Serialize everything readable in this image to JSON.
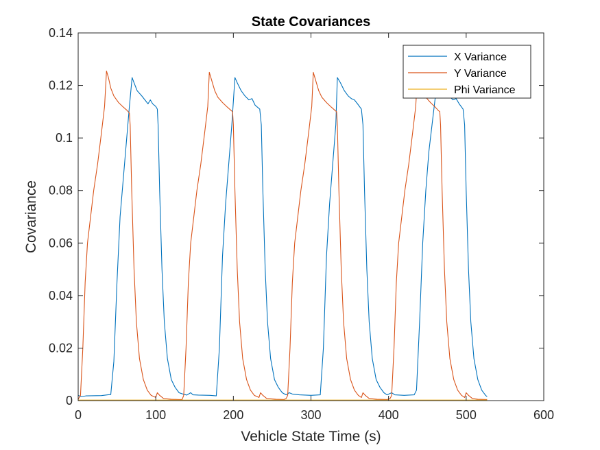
{
  "chart_data": {
    "type": "line",
    "title": "State Covariances",
    "xlabel": "Vehicle State Time (s)",
    "ylabel": "Covariance",
    "xlim": [
      0,
      600
    ],
    "ylim": [
      0,
      0.14
    ],
    "xticks": [
      0,
      100,
      200,
      300,
      400,
      500,
      600
    ],
    "yticks": [
      0,
      0.02,
      0.04,
      0.06,
      0.08,
      0.1,
      0.12,
      0.14
    ],
    "xtick_labels": [
      "0",
      "100",
      "200",
      "300",
      "400",
      "500",
      "600"
    ],
    "ytick_labels": [
      "0",
      "0.02",
      "0.04",
      "0.06",
      "0.08",
      "0.1",
      "0.12",
      "0.14"
    ],
    "grid": false,
    "legend_position": "top-right",
    "series": [
      {
        "name": "X Variance",
        "color": "#0072BD",
        "points": [
          [
            0,
            0.002
          ],
          [
            4,
            0.0015
          ],
          [
            10,
            0.0018
          ],
          [
            30,
            0.0019
          ],
          [
            38,
            0.0022
          ],
          [
            42,
            0.0023
          ],
          [
            46,
            0.015
          ],
          [
            50,
            0.045
          ],
          [
            54,
            0.07
          ],
          [
            58,
            0.084
          ],
          [
            62,
            0.098
          ],
          [
            66,
            0.112
          ],
          [
            69.5,
            0.123
          ],
          [
            72,
            0.121
          ],
          [
            76,
            0.118
          ],
          [
            82,
            0.116
          ],
          [
            86,
            0.1145
          ],
          [
            90,
            0.113
          ],
          [
            93,
            0.1145
          ],
          [
            96,
            0.113
          ],
          [
            100,
            0.112
          ],
          [
            102,
            0.111
          ],
          [
            103,
            0.105
          ],
          [
            105,
            0.08
          ],
          [
            108,
            0.05
          ],
          [
            111,
            0.03
          ],
          [
            115,
            0.016
          ],
          [
            120,
            0.008
          ],
          [
            125,
            0.005
          ],
          [
            130,
            0.003
          ],
          [
            135,
            0.0025
          ],
          [
            140,
            0.0021
          ],
          [
            145,
            0.003
          ],
          [
            148,
            0.0022
          ],
          [
            155,
            0.0021
          ],
          [
            170,
            0.002
          ],
          [
            178,
            0.0018
          ],
          [
            182,
            0.02
          ],
          [
            186,
            0.055
          ],
          [
            190,
            0.075
          ],
          [
            194,
            0.09
          ],
          [
            198,
            0.105
          ],
          [
            202,
            0.123
          ],
          [
            205,
            0.121
          ],
          [
            210,
            0.118
          ],
          [
            215,
            0.116
          ],
          [
            220,
            0.1145
          ],
          [
            224,
            0.115
          ],
          [
            228,
            0.1125
          ],
          [
            234,
            0.111
          ],
          [
            236,
            0.105
          ],
          [
            238,
            0.08
          ],
          [
            241,
            0.05
          ],
          [
            244,
            0.03
          ],
          [
            248,
            0.016
          ],
          [
            253,
            0.008
          ],
          [
            258,
            0.005
          ],
          [
            263,
            0.003
          ],
          [
            268,
            0.0022
          ],
          [
            272,
            0.003
          ],
          [
            276,
            0.0025
          ],
          [
            285,
            0.0022
          ],
          [
            300,
            0.002
          ],
          [
            312,
            0.0022
          ],
          [
            316,
            0.02
          ],
          [
            320,
            0.055
          ],
          [
            324,
            0.075
          ],
          [
            328,
            0.09
          ],
          [
            332,
            0.105
          ],
          [
            334,
            0.123
          ],
          [
            338,
            0.121
          ],
          [
            343,
            0.118
          ],
          [
            348,
            0.116
          ],
          [
            352,
            0.115
          ],
          [
            356,
            0.1145
          ],
          [
            360,
            0.113
          ],
          [
            365,
            0.111
          ],
          [
            367,
            0.105
          ],
          [
            369,
            0.08
          ],
          [
            372,
            0.05
          ],
          [
            375,
            0.03
          ],
          [
            379,
            0.016
          ],
          [
            384,
            0.008
          ],
          [
            389,
            0.005
          ],
          [
            394,
            0.003
          ],
          [
            398,
            0.0022
          ],
          [
            404,
            0.003
          ],
          [
            408,
            0.0022
          ],
          [
            420,
            0.002
          ],
          [
            433,
            0.0022
          ],
          [
            436,
            0.004
          ],
          [
            440,
            0.03
          ],
          [
            444,
            0.06
          ],
          [
            448,
            0.08
          ],
          [
            452,
            0.095
          ],
          [
            456,
            0.105
          ],
          [
            460,
            0.115
          ],
          [
            464,
            0.123
          ],
          [
            468,
            0.121
          ],
          [
            472,
            0.118
          ],
          [
            478,
            0.116
          ],
          [
            483,
            0.1145
          ],
          [
            487,
            0.115
          ],
          [
            491,
            0.113
          ],
          [
            496,
            0.111
          ],
          [
            498,
            0.105
          ],
          [
            500,
            0.08
          ],
          [
            503,
            0.05
          ],
          [
            506,
            0.03
          ],
          [
            510,
            0.016
          ],
          [
            515,
            0.008
          ],
          [
            520,
            0.004
          ],
          [
            525,
            0.002
          ],
          [
            527,
            0.0015
          ]
        ]
      },
      {
        "name": "Y Variance",
        "color": "#D95319",
        "points": [
          [
            0,
            0.0005
          ],
          [
            3,
            0.002
          ],
          [
            6,
            0.02
          ],
          [
            9,
            0.045
          ],
          [
            12,
            0.06
          ],
          [
            16,
            0.07
          ],
          [
            20,
            0.08
          ],
          [
            25,
            0.09
          ],
          [
            30,
            0.102
          ],
          [
            34,
            0.112
          ],
          [
            36.5,
            0.1255
          ],
          [
            39,
            0.123
          ],
          [
            42,
            0.119
          ],
          [
            46,
            0.116
          ],
          [
            52,
            0.1135
          ],
          [
            58,
            0.1118
          ],
          [
            63,
            0.1105
          ],
          [
            66,
            0.1095
          ],
          [
            67,
            0.105
          ],
          [
            69,
            0.08
          ],
          [
            72,
            0.05
          ],
          [
            75,
            0.03
          ],
          [
            79,
            0.016
          ],
          [
            84,
            0.008
          ],
          [
            89,
            0.004
          ],
          [
            94,
            0.002
          ],
          [
            100,
            0.0012
          ],
          [
            102,
            0.003
          ],
          [
            105,
            0.002
          ],
          [
            110,
            0.0008
          ],
          [
            120,
            0.0005
          ],
          [
            130,
            0.0004
          ],
          [
            134,
            0.0004
          ],
          [
            136,
            0.002
          ],
          [
            139,
            0.02
          ],
          [
            142,
            0.045
          ],
          [
            145,
            0.06
          ],
          [
            149,
            0.07
          ],
          [
            153,
            0.08
          ],
          [
            158,
            0.09
          ],
          [
            163,
            0.102
          ],
          [
            167,
            0.112
          ],
          [
            169,
            0.125
          ],
          [
            172,
            0.122
          ],
          [
            176,
            0.118
          ],
          [
            180,
            0.1155
          ],
          [
            186,
            0.1135
          ],
          [
            192,
            0.1118
          ],
          [
            197,
            0.1105
          ],
          [
            199,
            0.11
          ],
          [
            200,
            0.105
          ],
          [
            202,
            0.08
          ],
          [
            205,
            0.05
          ],
          [
            208,
            0.03
          ],
          [
            212,
            0.016
          ],
          [
            217,
            0.008
          ],
          [
            222,
            0.004
          ],
          [
            227,
            0.002
          ],
          [
            233,
            0.0012
          ],
          [
            235,
            0.003
          ],
          [
            238,
            0.002
          ],
          [
            243,
            0.0008
          ],
          [
            255,
            0.0005
          ],
          [
            265,
            0.0004
          ],
          [
            268,
            0.0008
          ],
          [
            270,
            0.002
          ],
          [
            273,
            0.02
          ],
          [
            276,
            0.045
          ],
          [
            279,
            0.06
          ],
          [
            283,
            0.07
          ],
          [
            287,
            0.08
          ],
          [
            292,
            0.09
          ],
          [
            297,
            0.102
          ],
          [
            301,
            0.112
          ],
          [
            303,
            0.125
          ],
          [
            306,
            0.122
          ],
          [
            310,
            0.118
          ],
          [
            314,
            0.1155
          ],
          [
            320,
            0.1135
          ],
          [
            326,
            0.1118
          ],
          [
            331,
            0.1105
          ],
          [
            333,
            0.11
          ],
          [
            334,
            0.105
          ],
          [
            336,
            0.08
          ],
          [
            339,
            0.05
          ],
          [
            342,
            0.03
          ],
          [
            346,
            0.016
          ],
          [
            351,
            0.008
          ],
          [
            356,
            0.004
          ],
          [
            361,
            0.002
          ],
          [
            365,
            0.0012
          ],
          [
            367,
            0.003
          ],
          [
            370,
            0.002
          ],
          [
            375,
            0.0008
          ],
          [
            385,
            0.0005
          ],
          [
            398,
            0.0004
          ],
          [
            402,
            0.0008
          ],
          [
            404,
            0.002
          ],
          [
            407,
            0.02
          ],
          [
            410,
            0.045
          ],
          [
            413,
            0.06
          ],
          [
            417,
            0.07
          ],
          [
            421,
            0.08
          ],
          [
            426,
            0.09
          ],
          [
            431,
            0.102
          ],
          [
            435,
            0.112
          ],
          [
            437.5,
            0.125
          ],
          [
            440,
            0.122
          ],
          [
            444,
            0.118
          ],
          [
            448,
            0.1155
          ],
          [
            454,
            0.1135
          ],
          [
            460,
            0.1118
          ],
          [
            464,
            0.1105
          ],
          [
            466,
            0.11
          ],
          [
            467,
            0.105
          ],
          [
            469,
            0.08
          ],
          [
            472,
            0.05
          ],
          [
            475,
            0.03
          ],
          [
            479,
            0.016
          ],
          [
            484,
            0.008
          ],
          [
            489,
            0.004
          ],
          [
            494,
            0.002
          ],
          [
            498,
            0.0012
          ],
          [
            500,
            0.003
          ],
          [
            503,
            0.002
          ],
          [
            508,
            0.0008
          ],
          [
            515,
            0.0005
          ],
          [
            527,
            0.0004
          ]
        ]
      },
      {
        "name": "Phi Variance",
        "color": "#EDB120",
        "points": [
          [
            0,
            0.0002
          ],
          [
            100,
            0.0002
          ],
          [
            200,
            0.0002
          ],
          [
            300,
            0.0002
          ],
          [
            400,
            0.0002
          ],
          [
            527,
            0.0002
          ]
        ]
      }
    ]
  }
}
